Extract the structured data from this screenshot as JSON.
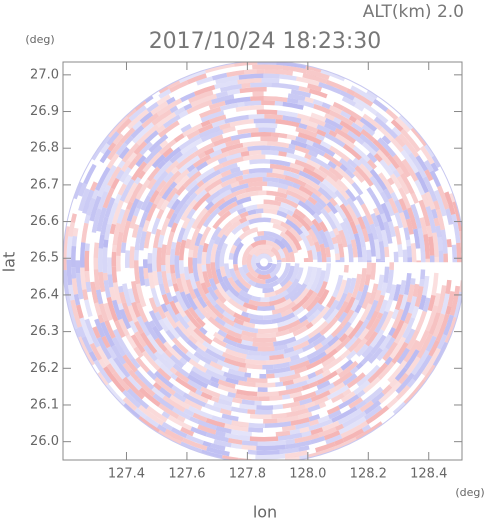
{
  "chart_data": {
    "type": "radar-ppi",
    "title": "2017/10/24 18:23:30",
    "subtitle": "ALT(km) 2.0",
    "x_label": "lon",
    "y_label": "lat",
    "x_unit": "(deg)",
    "y_unit": "(deg)",
    "xlim": [
      127.19,
      128.51
    ],
    "ylim": [
      25.95,
      27.035
    ],
    "xticks": [
      127.4,
      127.6,
      127.8,
      {
        "value": 128,
        "label": "128.0"
      },
      128.2,
      128.4
    ],
    "yticks": [
      {
        "value": 26,
        "label": "26.0"
      },
      26.1,
      26.2,
      26.3,
      26.4,
      26.5,
      26.6,
      26.7,
      26.8,
      26.9,
      {
        "value": 27,
        "label": "27.0"
      }
    ]
  }
}
